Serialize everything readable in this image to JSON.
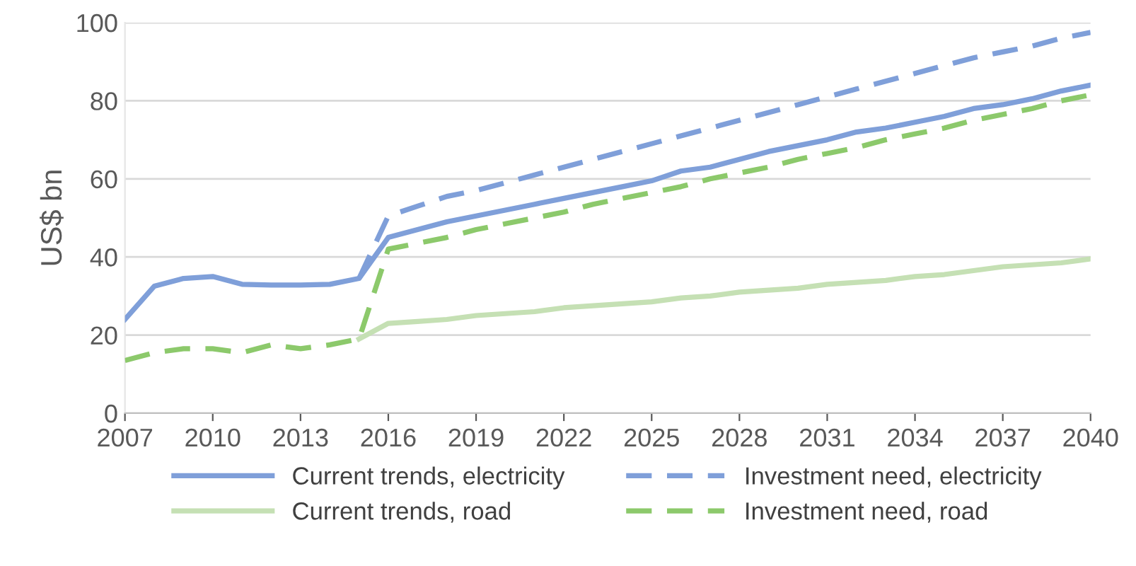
{
  "chart_data": {
    "type": "line",
    "ylabel": "US$ bn",
    "x": [
      2007,
      2008,
      2009,
      2010,
      2011,
      2012,
      2013,
      2014,
      2015,
      2016,
      2017,
      2018,
      2019,
      2020,
      2021,
      2022,
      2023,
      2024,
      2025,
      2026,
      2027,
      2028,
      2029,
      2030,
      2031,
      2032,
      2033,
      2034,
      2035,
      2036,
      2037,
      2038,
      2039,
      2040
    ],
    "series": [
      {
        "name": "Current trends, electricity",
        "color": "#7f9fd9",
        "line_style": "solid",
        "values": [
          24,
          32.5,
          34.5,
          35,
          33,
          32.8,
          32.8,
          33,
          34.5,
          45,
          47,
          49,
          50.5,
          52,
          53.5,
          55,
          56.5,
          58,
          59.5,
          62,
          63,
          65,
          67,
          68.5,
          70,
          72,
          73,
          74.5,
          76,
          78,
          79,
          80.5,
          82.5,
          84
        ]
      },
      {
        "name": "Investment need, electricity",
        "color": "#7f9fd9",
        "line_style": "dashed",
        "values": [
          null,
          null,
          null,
          null,
          null,
          null,
          null,
          null,
          34.5,
          50.5,
          53,
          55.5,
          57,
          59,
          61,
          63,
          65,
          67,
          69,
          71,
          73,
          75,
          77,
          79,
          81,
          83,
          85,
          87,
          89,
          91,
          92.5,
          94,
          96,
          97.5
        ]
      },
      {
        "name": "Current trends, road",
        "color": "#c5e0b4",
        "line_style": "solid",
        "values": [
          null,
          null,
          null,
          null,
          null,
          null,
          null,
          null,
          19,
          23,
          23.5,
          24,
          25,
          25.5,
          26,
          27,
          27.5,
          28,
          28.5,
          29.5,
          30,
          31,
          31.5,
          32,
          33,
          33.5,
          34,
          35,
          35.5,
          36.5,
          37.5,
          38,
          38.5,
          39.5
        ]
      },
      {
        "name": "Investment need, road",
        "color": "#8cc96b",
        "line_style": "dashed",
        "values": [
          13.5,
          15.5,
          16.5,
          16.5,
          15.5,
          17.5,
          16.5,
          17.5,
          19,
          42,
          43.5,
          45,
          47,
          48.5,
          50,
          51.5,
          53.5,
          55,
          56.5,
          58,
          60,
          61.5,
          63,
          65,
          66.5,
          68,
          70,
          71.5,
          73,
          75,
          76.5,
          78,
          80,
          81.5
        ]
      }
    ],
    "xlim": [
      2007,
      2040
    ],
    "xticks": [
      2007,
      2010,
      2013,
      2016,
      2019,
      2022,
      2025,
      2028,
      2031,
      2034,
      2037,
      2040
    ],
    "ylim": [
      0,
      100
    ],
    "yticks": [
      0,
      20,
      40,
      60,
      80,
      100
    ],
    "grid": "y",
    "legend": "bottom",
    "marker": "none"
  }
}
